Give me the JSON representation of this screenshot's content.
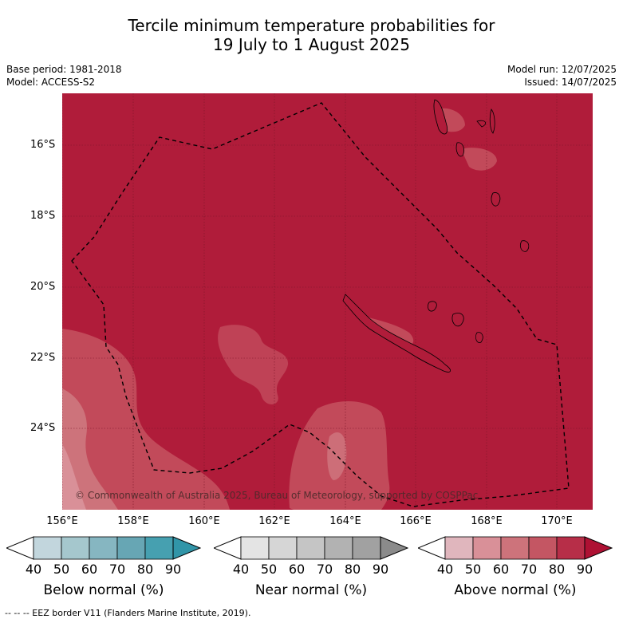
{
  "title_line1": "Tercile minimum temperature probabilities for",
  "title_line2": "19 July to 1 August 2025",
  "meta_left": [
    "Base period: 1981-2018",
    "Model: ACCESS-S2"
  ],
  "meta_right": [
    "Model run: 12/07/2025",
    "Issued: 14/07/2025"
  ],
  "map": {
    "lat_labels": [
      "16°S",
      "18°S",
      "20°S",
      "22°S",
      "24°S"
    ],
    "lon_labels": [
      "156°E",
      "158°E",
      "160°E",
      "162°E",
      "164°E",
      "166°E",
      "168°E",
      "170°E"
    ],
    "copyright": "© Commonwealth of Australia 2025, Bureau of Meteorology, supported by COSPPac"
  },
  "colorbars": [
    {
      "label": "Below normal (%)",
      "colors": [
        "#c2d6dd",
        "#a5c7cd",
        "#86b6c1",
        "#67a6b4",
        "#46a0b0"
      ],
      "arrow_color": "#3195a8"
    },
    {
      "label": "Near normal (%)",
      "colors": [
        "#e4e4e4",
        "#d6d6d6",
        "#c5c5c5",
        "#b2b2b2",
        "#a1a1a1"
      ],
      "arrow_color": "#8b8b8b"
    },
    {
      "label": "Above normal (%)",
      "colors": [
        "#e0b6bd",
        "#d99098",
        "#cd737b",
        "#c45663",
        "#b72e48"
      ],
      "arrow_color": "#ae1133"
    }
  ],
  "colorbar_ticks": [
    "40",
    "50",
    "60",
    "70",
    "80",
    "90"
  ],
  "footnote": "-- -- -- EEZ border V11 (Flanders Marine Institute, 2019)."
}
